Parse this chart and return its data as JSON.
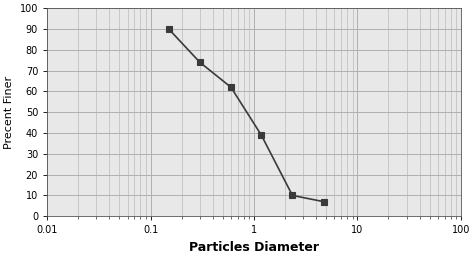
{
  "x_data": [
    0.15,
    0.3,
    0.6,
    1.18,
    2.36,
    4.75
  ],
  "y_data": [
    90,
    74,
    62,
    39,
    10,
    7
  ],
  "xlabel": "Particles Diameter",
  "ylabel": "Precent Finer",
  "xlim": [
    0.01,
    100
  ],
  "ylim": [
    0,
    100
  ],
  "yticks": [
    0,
    10,
    20,
    30,
    40,
    50,
    60,
    70,
    80,
    90,
    100
  ],
  "line_color": "#3a3a3a",
  "marker": "s",
  "markersize": 4,
  "linewidth": 1.2,
  "grid_color": "#b0b0b0",
  "plot_bg_color": "#e8e8e8",
  "bg_color": "#ffffff",
  "xlabel_fontsize": 9,
  "ylabel_fontsize": 8,
  "tick_fontsize": 7,
  "xlabel_fontweight": "bold",
  "ylabel_fontweight": "normal",
  "figsize": [
    4.74,
    2.58
  ],
  "dpi": 100
}
